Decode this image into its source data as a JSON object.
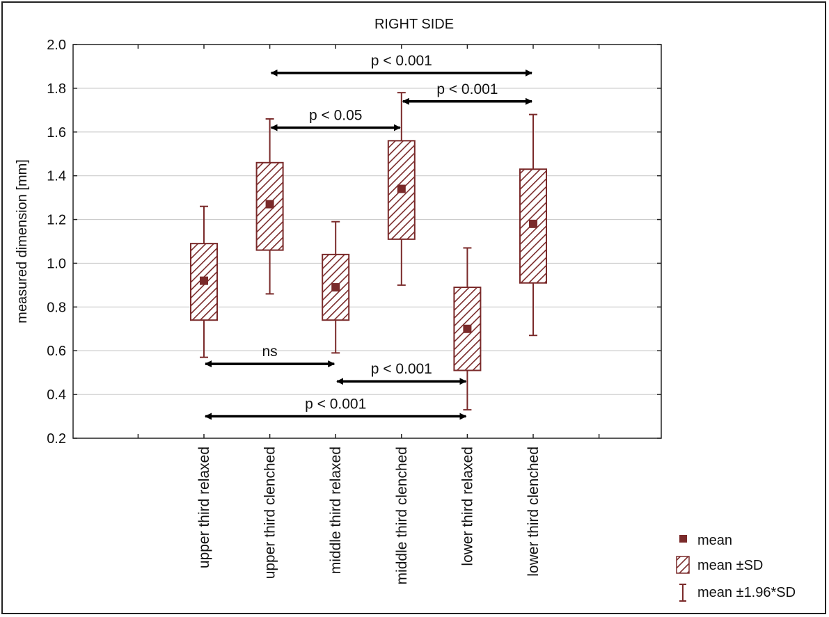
{
  "chart_data": {
    "type": "box",
    "title": "RIGHT SIDE",
    "ylabel": "measured dimension [mm]",
    "xlabel": "",
    "ylim": [
      0.2,
      2.0
    ],
    "yticks": [
      "0.2",
      "0.4",
      "0.6",
      "0.8",
      "1.0",
      "1.2",
      "1.4",
      "1.6",
      "1.8",
      "2.0"
    ],
    "grid": true,
    "categories": [
      "upper third relaxed",
      "upper third clenched",
      "middle third relaxed",
      "middle third clenched",
      "lower third relaxed",
      "lower third clenched"
    ],
    "series": [
      {
        "name": "mean",
        "values": [
          0.92,
          1.27,
          0.89,
          1.34,
          0.7,
          1.18
        ]
      },
      {
        "name": "mean ±SD",
        "low": [
          0.74,
          1.06,
          0.74,
          1.11,
          0.51,
          0.91
        ],
        "high": [
          1.09,
          1.46,
          1.04,
          1.56,
          0.89,
          1.43
        ]
      },
      {
        "name": "mean ±1.96*SD",
        "low": [
          0.57,
          0.86,
          0.59,
          0.9,
          0.33,
          0.67
        ],
        "high": [
          1.26,
          1.66,
          1.19,
          1.78,
          1.07,
          1.68
        ]
      }
    ],
    "annotations": [
      {
        "from": 1,
        "to": 5,
        "y": 1.87,
        "text": "p < 0.001",
        "position": "above"
      },
      {
        "from": 3,
        "to": 5,
        "y": 1.74,
        "text": "p < 0.001",
        "position": "above"
      },
      {
        "from": 1,
        "to": 3,
        "y": 1.62,
        "text": "p < 0.05",
        "position": "above"
      },
      {
        "from": 0,
        "to": 2,
        "y": 0.54,
        "text": "ns",
        "position": "above"
      },
      {
        "from": 2,
        "to": 4,
        "y": 0.46,
        "text": "p < 0.001",
        "position": "above"
      },
      {
        "from": 0,
        "to": 4,
        "y": 0.3,
        "text": "p < 0.001",
        "position": "above"
      }
    ],
    "legend_position": "bottom-right",
    "colors": {
      "series": "#7a2a2a",
      "arrow": "#000000",
      "grid": "#cccccc"
    }
  }
}
